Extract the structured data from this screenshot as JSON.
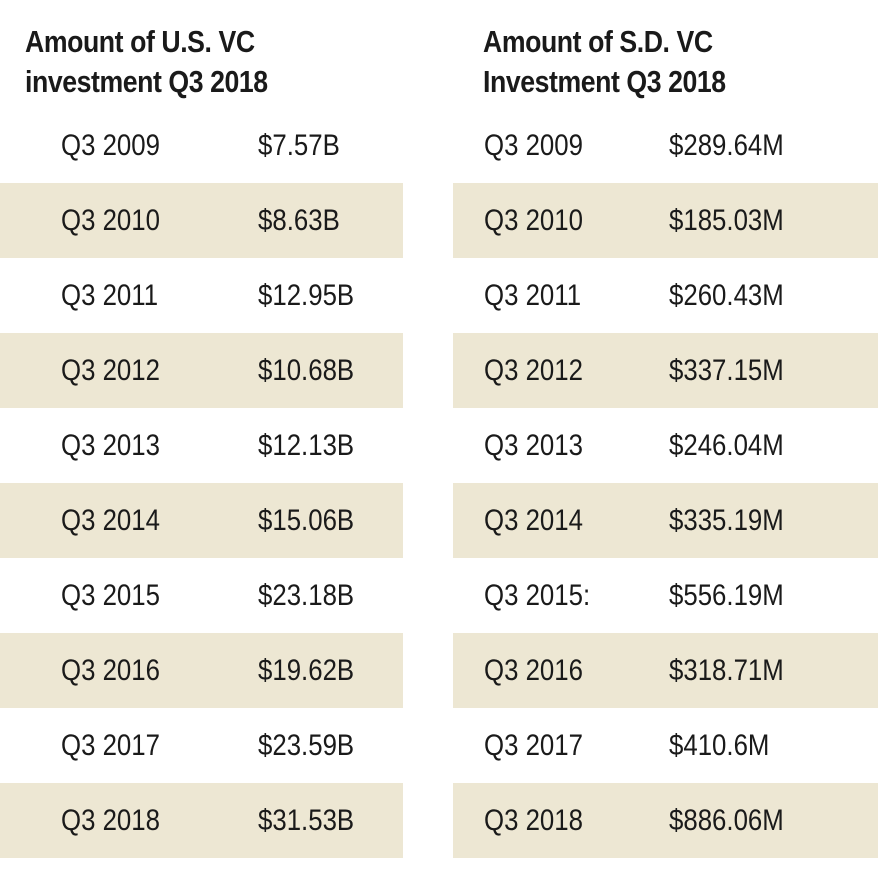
{
  "chart_data": [
    {
      "type": "table",
      "title": [
        "Amount of U.S. VC",
        "investment Q3 2018"
      ],
      "columns": [
        "",
        ""
      ],
      "rows": [
        {
          "quarter": "Q3 2009",
          "value": "$7.57B"
        },
        {
          "quarter": "Q3 2010",
          "value": "$8.63B"
        },
        {
          "quarter": "Q3 2011",
          "value": "$12.95B"
        },
        {
          "quarter": "Q3 2012",
          "value": "$10.68B"
        },
        {
          "quarter": "Q3 2013",
          "value": "$12.13B"
        },
        {
          "quarter": "Q3 2014",
          "value": "$15.06B"
        },
        {
          "quarter": "Q3 2015",
          "value": "$23.18B"
        },
        {
          "quarter": "Q3 2016",
          "value": "$19.62B"
        },
        {
          "quarter": "Q3 2017",
          "value": "$23.59B"
        },
        {
          "quarter": "Q3 2018",
          "value": "$31.53B"
        }
      ],
      "stripe_color": "#ede7d3"
    },
    {
      "type": "table",
      "title": [
        "Amount of S.D. VC",
        "Investment Q3 2018"
      ],
      "columns": [
        "",
        ""
      ],
      "rows": [
        {
          "quarter": "Q3 2009",
          "value": "$289.64M"
        },
        {
          "quarter": "Q3 2010",
          "value": "$185.03M"
        },
        {
          "quarter": "Q3 2011",
          "value": "$260.43M"
        },
        {
          "quarter": "Q3 2012",
          "value": "$337.15M"
        },
        {
          "quarter": "Q3 2013",
          "value": "$246.04M"
        },
        {
          "quarter": "Q3 2014",
          "value": "$335.19M"
        },
        {
          "quarter": "Q3 2015:",
          "value": "$556.19M"
        },
        {
          "quarter": "Q3 2016",
          "value": "$318.71M"
        },
        {
          "quarter": "Q3 2017",
          "value": "$410.6M"
        },
        {
          "quarter": "Q3 2018",
          "value": "$886.06M"
        }
      ],
      "stripe_color": "#ede7d3"
    }
  ]
}
